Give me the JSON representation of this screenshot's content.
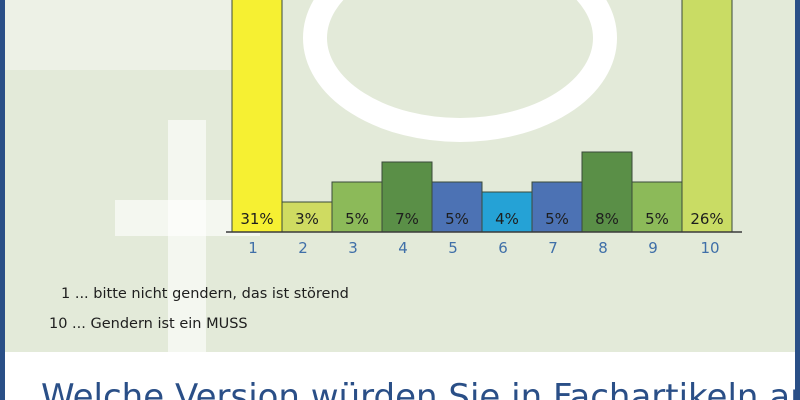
{
  "chart_data": {
    "type": "bar",
    "categories": [
      "1",
      "2",
      "3",
      "4",
      "5",
      "6",
      "7",
      "8",
      "9",
      "10"
    ],
    "values": [
      31,
      3,
      5,
      7,
      5,
      4,
      5,
      8,
      5,
      26
    ],
    "value_labels": [
      "31%",
      "3%",
      "5%",
      "7%",
      "5%",
      "4%",
      "5%",
      "8%",
      "5%",
      "26%"
    ],
    "colors": [
      "#f6f032",
      "#cfdb61",
      "#8cba59",
      "#5a8f47",
      "#4c72b4",
      "#25a2d6",
      "#4c72b4",
      "#5a8f47",
      "#8cba59",
      "#c9dc64"
    ],
    "title": "",
    "xlabel": "",
    "ylabel": "",
    "ylim": [
      0,
      10
    ],
    "grid": false,
    "legend": [
      "1 ... bitte nicht gendern, das ist störend",
      "10 ... Gendern ist ein MUSS"
    ]
  },
  "question_text": "Welche Version würden Sie in Fachartikeln am"
}
